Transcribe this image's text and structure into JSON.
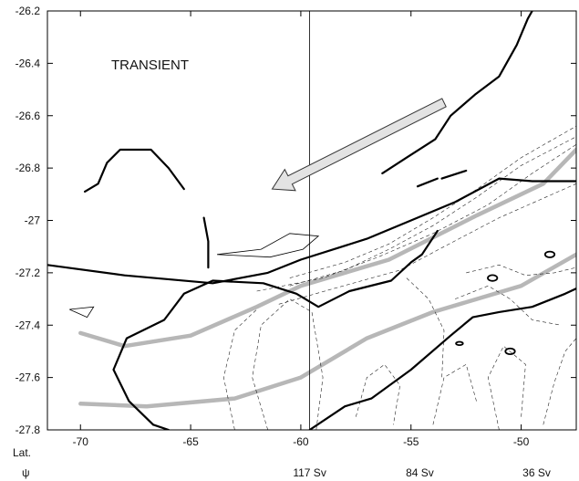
{
  "chart_data": {
    "type": "contour",
    "annotation": "TRANSIENT",
    "x_axis_label": "Lat.",
    "psi_label": "ψ",
    "xlim": [
      -71.5,
      -47.5
    ],
    "ylim": [
      -27.8,
      -26.2
    ],
    "x_ticks": [
      -70,
      -65,
      -60,
      -55,
      -50
    ],
    "x_tick_labels": [
      "-70",
      "-65",
      "-60",
      "-55",
      "-50"
    ],
    "y_ticks": [
      -26.2,
      -26.4,
      -26.6,
      -26.8,
      -27.0,
      -27.2,
      -27.4,
      -27.6,
      -27.8
    ],
    "y_tick_labels": [
      "-26.2",
      "-26.4",
      "-26.6",
      "-26.8",
      "-27",
      "-27.2",
      "-27.4",
      "-27.6",
      "-27.8"
    ],
    "reference_line_x": -59.6,
    "transport": [
      {
        "x": -59.6,
        "label": "117 Sv"
      },
      {
        "x": -54.6,
        "label": "84 Sv"
      },
      {
        "x": -49.3,
        "label": "36 Sv"
      }
    ],
    "gray_curves": [
      {
        "points": [
          [
            -70,
            -27.7
          ],
          [
            -67,
            -27.71
          ],
          [
            -63,
            -27.68
          ],
          [
            -60,
            -27.6
          ],
          [
            -57,
            -27.45
          ],
          [
            -54,
            -27.35
          ],
          [
            -50,
            -27.25
          ],
          [
            -47.5,
            -27.13
          ]
        ]
      },
      {
        "points": [
          [
            -70,
            -27.43
          ],
          [
            -68,
            -27.48
          ],
          [
            -65,
            -27.44
          ],
          [
            -62,
            -27.33
          ],
          [
            -60,
            -27.25
          ],
          [
            -56,
            -27.15
          ],
          [
            -52,
            -26.98
          ],
          [
            -49,
            -26.86
          ],
          [
            -47.5,
            -26.73
          ]
        ]
      }
    ],
    "arrow": {
      "from": [
        -53.5,
        -26.55
      ],
      "to": [
        -61.3,
        -26.88
      ]
    },
    "thick_contours": [
      [
        [
          -71.5,
          -27.17
        ],
        [
          -68,
          -27.21
        ],
        [
          -64,
          -27.24
        ],
        [
          -61.5,
          -27.2
        ],
        [
          -60,
          -27.15
        ],
        [
          -57,
          -27.07
        ],
        [
          -55,
          -27.0
        ],
        [
          -53,
          -26.93
        ],
        [
          -51,
          -26.84
        ],
        [
          -49.5,
          -26.85
        ],
        [
          -47.5,
          -26.85
        ]
      ],
      [
        [
          -69.8,
          -26.89
        ],
        [
          -69.2,
          -26.86
        ],
        [
          -68.8,
          -26.78
        ],
        [
          -68.2,
          -26.73
        ],
        [
          -66.8,
          -26.73
        ],
        [
          -66.0,
          -26.8
        ],
        [
          -65.3,
          -26.88
        ]
      ],
      [
        [
          -64.4,
          -26.99
        ],
        [
          -64.2,
          -27.08
        ],
        [
          -64.2,
          -27.18
        ]
      ],
      [
        [
          -56.3,
          -26.82
        ],
        [
          -55.2,
          -26.76
        ],
        [
          -53.9,
          -26.69
        ],
        [
          -53.2,
          -26.6
        ],
        [
          -52.1,
          -26.52
        ],
        [
          -51.0,
          -26.45
        ],
        [
          -50.2,
          -26.33
        ],
        [
          -49.7,
          -26.23
        ],
        [
          -49.3,
          -26.17
        ]
      ],
      [
        [
          -54.7,
          -26.87
        ],
        [
          -53.8,
          -26.84
        ]
      ],
      [
        [
          -53.6,
          -26.84
        ],
        [
          -52.5,
          -26.81
        ]
      ],
      [
        [
          -66.7,
          -27.78
        ],
        [
          -67.8,
          -27.69
        ],
        [
          -68.5,
          -27.57
        ],
        [
          -67.9,
          -27.45
        ],
        [
          -66.2,
          -27.38
        ],
        [
          -65.3,
          -27.28
        ],
        [
          -64.0,
          -27.23
        ],
        [
          -61.7,
          -27.24
        ],
        [
          -60.2,
          -27.28
        ],
        [
          -59.2,
          -27.33
        ],
        [
          -57.8,
          -27.27
        ],
        [
          -55.9,
          -27.23
        ],
        [
          -55.0,
          -27.16
        ],
        [
          -54.5,
          -27.13
        ],
        [
          -53.8,
          -27.04
        ]
      ],
      [
        [
          -66.7,
          -27.78
        ],
        [
          -66.0,
          -27.8
        ]
      ],
      [
        [
          -64.0,
          -27.82
        ],
        [
          -63.0,
          -27.83
        ]
      ],
      [
        [
          -59.6,
          -27.8
        ],
        [
          -58.0,
          -27.71
        ],
        [
          -56.8,
          -27.68
        ],
        [
          -55.0,
          -27.57
        ],
        [
          -53.2,
          -27.44
        ],
        [
          -52.2,
          -27.37
        ],
        [
          -51.0,
          -27.35
        ],
        [
          -49.5,
          -27.33
        ],
        [
          -48.0,
          -27.28
        ],
        [
          -47.5,
          -27.26
        ]
      ]
    ],
    "thin_contours": [
      [
        [
          -63.8,
          -27.13
        ],
        [
          -61.8,
          -27.11
        ],
        [
          -60.5,
          -27.05
        ],
        [
          -59.2,
          -27.06
        ],
        [
          -59.9,
          -27.11
        ],
        [
          -61.4,
          -27.14
        ],
        [
          -63.8,
          -27.13
        ]
      ],
      [
        [
          -70.5,
          -27.34
        ],
        [
          -69.4,
          -27.33
        ],
        [
          -69.7,
          -27.37
        ],
        [
          -70.5,
          -27.34
        ]
      ]
    ],
    "dashed_contours": [
      [
        [
          -60.5,
          -27.22
        ],
        [
          -58.0,
          -27.16
        ],
        [
          -56.0,
          -27.09
        ],
        [
          -54.0,
          -26.99
        ],
        [
          -52.0,
          -26.88
        ],
        [
          -50.0,
          -26.76
        ],
        [
          -47.5,
          -26.64
        ]
      ],
      [
        [
          -60.5,
          -27.25
        ],
        [
          -58.0,
          -27.19
        ],
        [
          -56.0,
          -27.11
        ],
        [
          -54.0,
          -27.02
        ],
        [
          -52.0,
          -26.91
        ],
        [
          -50.0,
          -26.79
        ],
        [
          -47.5,
          -26.68
        ]
      ],
      [
        [
          -62.0,
          -27.27
        ],
        [
          -59.0,
          -27.22
        ],
        [
          -56.5,
          -27.14
        ],
        [
          -54.0,
          -27.05
        ],
        [
          -51.5,
          -26.94
        ],
        [
          -49.5,
          -26.82
        ],
        [
          -47.5,
          -26.71
        ]
      ],
      [
        [
          -61.0,
          -27.32
        ],
        [
          -58.5,
          -27.26
        ],
        [
          -55.5,
          -27.19
        ],
        [
          -53.5,
          -27.1
        ],
        [
          -51.0,
          -26.99
        ],
        [
          -47.5,
          -26.86
        ]
      ],
      [
        [
          -61.5,
          -27.8
        ],
        [
          -62.2,
          -27.6
        ],
        [
          -61.8,
          -27.4
        ],
        [
          -60.5,
          -27.3
        ],
        [
          -59.5,
          -27.35
        ],
        [
          -59.0,
          -27.6
        ],
        [
          -59.3,
          -27.8
        ]
      ],
      [
        [
          -63.0,
          -27.8
        ],
        [
          -63.5,
          -27.6
        ],
        [
          -63.0,
          -27.42
        ],
        [
          -62.0,
          -27.34
        ]
      ],
      [
        [
          -57.5,
          -27.75
        ],
        [
          -57.0,
          -27.6
        ],
        [
          -56.2,
          -27.55
        ],
        [
          -55.5,
          -27.63
        ],
        [
          -55.8,
          -27.78
        ]
      ],
      [
        [
          -54.0,
          -27.78
        ],
        [
          -53.5,
          -27.6
        ],
        [
          -52.5,
          -27.55
        ],
        [
          -52.0,
          -27.7
        ]
      ],
      [
        [
          -51.0,
          -27.8
        ],
        [
          -51.5,
          -27.6
        ],
        [
          -50.8,
          -27.48
        ],
        [
          -49.8,
          -27.55
        ],
        [
          -50.0,
          -27.75
        ]
      ],
      [
        [
          -49.0,
          -27.78
        ],
        [
          -48.5,
          -27.62
        ],
        [
          -48.0,
          -27.5
        ],
        [
          -47.5,
          -27.45
        ]
      ],
      [
        [
          -53.0,
          -27.3
        ],
        [
          -51.5,
          -27.25
        ],
        [
          -50.5,
          -27.3
        ],
        [
          -49.5,
          -27.38
        ],
        [
          -48.2,
          -27.4
        ]
      ],
      [
        [
          -52.5,
          -27.2
        ],
        [
          -51.0,
          -27.17
        ],
        [
          -49.8,
          -27.21
        ],
        [
          -48.5,
          -27.2
        ],
        [
          -47.5,
          -27.18
        ]
      ],
      [
        [
          -59.3,
          -27.82
        ],
        [
          -55.0,
          -27.81
        ],
        [
          -50.0,
          -27.81
        ],
        [
          -47.5,
          -27.8
        ]
      ],
      [
        [
          -59.3,
          -27.84
        ],
        [
          -55.0,
          -27.83
        ],
        [
          -50.0,
          -27.83
        ],
        [
          -47.5,
          -27.82
        ]
      ],
      [
        [
          -55.2,
          -27.22
        ],
        [
          -54.2,
          -27.3
        ],
        [
          -53.5,
          -27.42
        ],
        [
          -53.6,
          -27.6
        ]
      ]
    ],
    "blobs": [
      {
        "center": [
          -48.7,
          -27.13
        ],
        "size": "small"
      },
      {
        "center": [
          -51.3,
          -27.22
        ],
        "size": "small"
      },
      {
        "center": [
          -52.8,
          -27.47
        ],
        "size": "dot"
      },
      {
        "center": [
          -50.5,
          -27.5
        ],
        "size": "small"
      }
    ]
  }
}
